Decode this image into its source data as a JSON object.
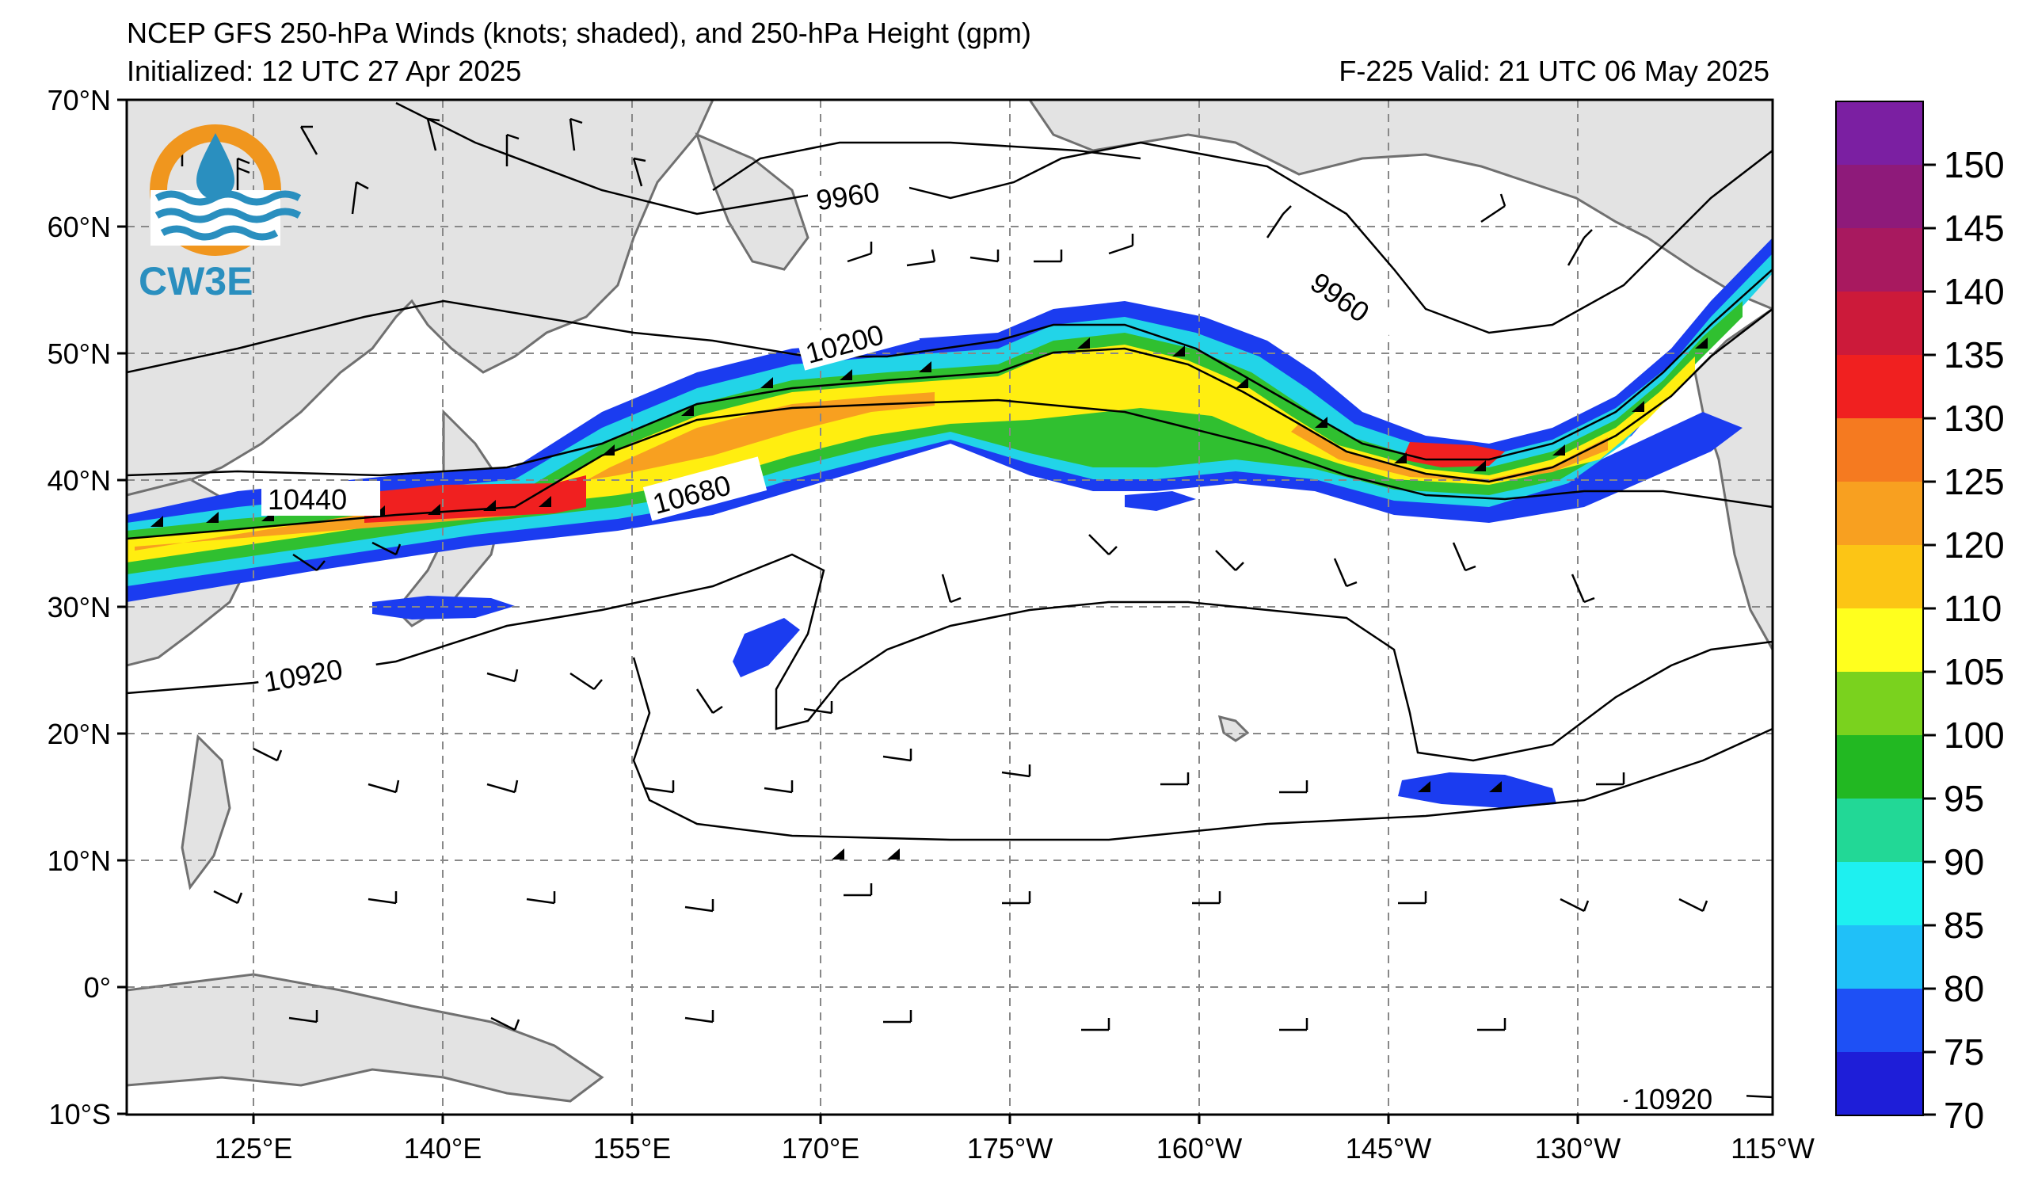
{
  "header": {
    "title": "NCEP GFS 250-hPa Winds (knots; shaded), and 250-hPa Height (gpm)",
    "initialized": "Initialized: 12 UTC 27 Apr 2025",
    "valid": "F-225  Valid: 21 UTC 06 May 2025"
  },
  "logo": {
    "text": "CW3E",
    "colors": {
      "ring": "#f0961e",
      "wave": "#2a8fbf"
    }
  },
  "map": {
    "lat_labels": [
      "70°N",
      "60°N",
      "50°N",
      "40°N",
      "30°N",
      "20°N",
      "10°N",
      "0°",
      "10°S"
    ],
    "lon_labels": [
      "125°E",
      "140°E",
      "155°E",
      "170°E",
      "175°W",
      "160°W",
      "145°W",
      "130°W",
      "115°W"
    ],
    "contour_labels": [
      "9960",
      "9960",
      "10200",
      "10440",
      "10680",
      "10920",
      "10920"
    ],
    "jet_colors": {
      "outer": "#1b3cf0",
      "mid": "#22d4e8",
      "green": "#30c030",
      "yellow": "#ffee10",
      "orange": "#f8a020",
      "red": "#f02020"
    }
  },
  "colorbar": {
    "ticks": [
      "150",
      "145",
      "140",
      "135",
      "130",
      "125",
      "120",
      "110",
      "105",
      "100",
      "95",
      "90",
      "85",
      "80",
      "75",
      "70"
    ],
    "colors": [
      "#7b1fa2",
      "#8e1a7a",
      "#a8195f",
      "#cc1a3a",
      "#f02020",
      "#f57a20",
      "#f8a020",
      "#fcc515",
      "#ffff1e",
      "#7ad21e",
      "#22b822",
      "#22d896",
      "#1ef0f0",
      "#20c0f8",
      "#1e50f5",
      "#1e1ed8"
    ]
  }
}
